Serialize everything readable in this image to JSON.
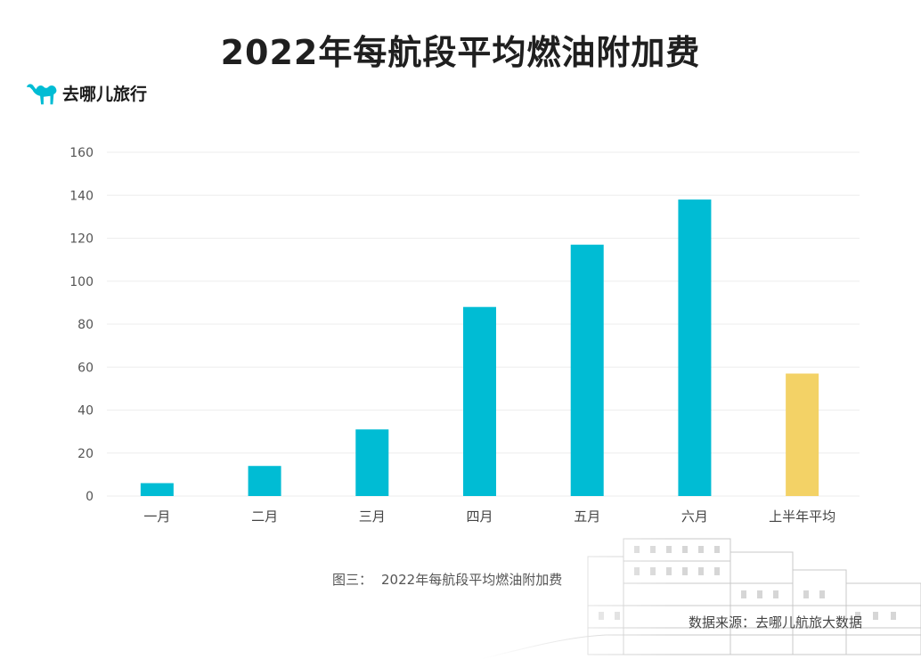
{
  "title": "2022年每航段平均燃油附加费",
  "logo": {
    "text": "去哪儿旅行",
    "icon": "camel-icon",
    "color": "#00bcd4"
  },
  "caption": {
    "label": "图三：",
    "text": "2022年每航段平均燃油附加费"
  },
  "source": "数据来源：去哪儿航旅大数据",
  "colors": {
    "bar": "#00bcd4",
    "highlight": "#f3d266",
    "grid": "#eeeeee",
    "axis": "#555555"
  },
  "chart_data": {
    "type": "bar",
    "title": "2022年每航段平均燃油附加费",
    "xlabel": "",
    "ylabel": "",
    "categories": [
      "一月",
      "二月",
      "三月",
      "四月",
      "五月",
      "六月",
      "上半年平均"
    ],
    "values": [
      6,
      14,
      31,
      88,
      117,
      138,
      57
    ],
    "ylim": [
      0,
      160
    ],
    "yticks": [
      0,
      20,
      40,
      60,
      80,
      100,
      120,
      140,
      160
    ],
    "grid": true,
    "legend": "none",
    "highlight_category": "上半年平均"
  }
}
